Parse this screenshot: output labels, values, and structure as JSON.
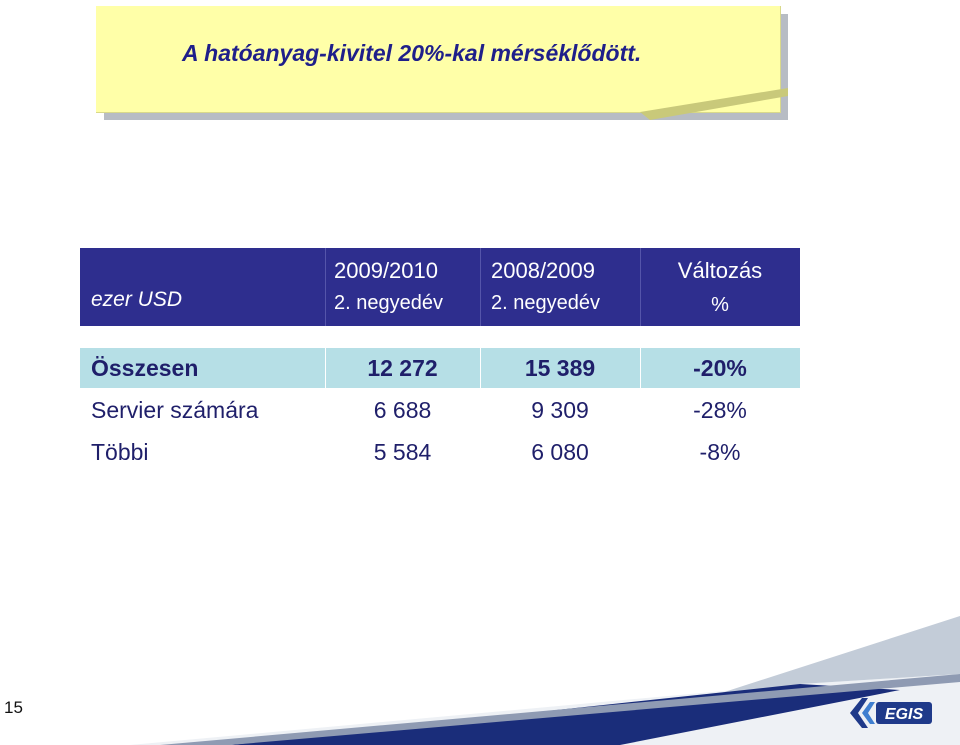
{
  "slide": {
    "title": "A hatóanyag-kivitel 20%-kal mérséklődött.",
    "page_number": "15",
    "logo_alt": "EGIS",
    "colors": {
      "title_text": "#1f1f8a",
      "note_bg": "#ffffa8",
      "header_bg": "#2e2e8e",
      "total_row_bg": "#b6dfe6",
      "body_text": "#1f1f6a"
    }
  },
  "table": {
    "unit_label": "ezer USD",
    "columns": [
      {
        "line1": "2009/2010",
        "line2": "2. negyedév"
      },
      {
        "line1": "2008/2009",
        "line2": "2. negyedév"
      },
      {
        "line1": "Változás",
        "line2": "%"
      }
    ],
    "rows": [
      {
        "label": "Összesen",
        "v1": "12 272",
        "v2": "15 389",
        "change": "-20%"
      },
      {
        "label": "Servier számára",
        "v1": "6 688",
        "v2": "9 309",
        "change": "-28%"
      },
      {
        "label": "Többi",
        "v1": "5 584",
        "v2": "6 080",
        "change": "-8%"
      }
    ]
  }
}
